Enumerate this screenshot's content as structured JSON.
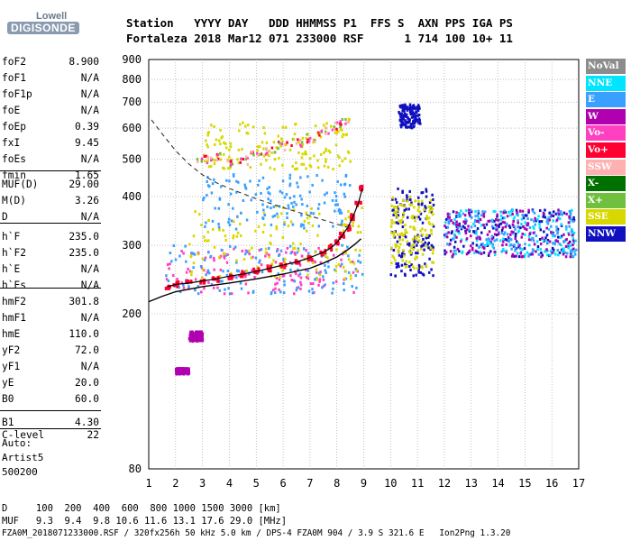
{
  "logo": {
    "line1": "Lowell",
    "line2": "DIGISONDE"
  },
  "header": {
    "line1": "Station   YYYY DAY   DDD HHMMSS P1  FFS S  AXN PPS IGA PS",
    "line2": "Fortaleza 2018 Mar12 071 233000 RSF      1 714 100 10+ 11"
  },
  "params": [
    {
      "name": "foF2",
      "value": "8.900"
    },
    {
      "name": "foF1",
      "value": "N/A"
    },
    {
      "name": "foF1p",
      "value": "N/A"
    },
    {
      "name": "foE",
      "value": "N/A"
    },
    {
      "name": "foEp",
      "value": "0.39"
    },
    {
      "name": "fxI",
      "value": "9.45"
    },
    {
      "name": "foEs",
      "value": "N/A"
    },
    {
      "name": "fmin",
      "value": "1.65"
    },
    {
      "name": "MUF(D)",
      "value": "29.00"
    },
    {
      "name": "M(D)",
      "value": "3.26"
    },
    {
      "name": "D",
      "value": "N/A"
    },
    {
      "name": "h`F",
      "value": "235.0"
    },
    {
      "name": "h`F2",
      "value": "235.0"
    },
    {
      "name": "h`E",
      "value": "N/A"
    },
    {
      "name": "h`Es",
      "value": "N/A"
    },
    {
      "name": "hmF2",
      "value": "301.8"
    },
    {
      "name": "hmF1",
      "value": "N/A"
    },
    {
      "name": "hmE",
      "value": "110.0"
    },
    {
      "name": "yF2",
      "value": "72.0"
    },
    {
      "name": "yF1",
      "value": "N/A"
    },
    {
      "name": "yE",
      "value": "20.0"
    },
    {
      "name": "B0",
      "value": "60.0"
    },
    {
      "name": "B1",
      "value": "4.30"
    },
    {
      "name": "C-level",
      "value": "22"
    }
  ],
  "auto": {
    "line1": "Auto:",
    "line2": "Artist5",
    "line3": "500200"
  },
  "legend": [
    {
      "label": "NoVal",
      "color": "#8c8c8c"
    },
    {
      "label": "NNE",
      "color": "#00e5ff"
    },
    {
      "label": "E",
      "color": "#3aa0ff"
    },
    {
      "label": "W",
      "color": "#b000b0"
    },
    {
      "label": "Vo-",
      "color": "#ff40c0"
    },
    {
      "label": "Vo+",
      "color": "#ff0030"
    },
    {
      "label": "SSW",
      "color": "#ffb0b0"
    },
    {
      "label": "X-",
      "color": "#007000"
    },
    {
      "label": "X+",
      "color": "#70c040"
    },
    {
      "label": "SSE",
      "color": "#d8d800"
    },
    {
      "label": "NNW",
      "color": "#1010c0"
    }
  ],
  "bottom": {
    "row1": "D     100  200  400  600  800 1000 1500 3000 [km]",
    "row2": "MUF   9.3  9.4  9.8 10.6 11.6 13.1 17.6 29.0 [MHz]",
    "row3": "FZA0M_2018071233000.RSF / 320fx256h 50 kHz 5.0 km / DPS-4 FZA0M 904 / 3.9 S 321.6 E   Ion2Png 1.3.20"
  },
  "chart_data": {
    "type": "scatter",
    "xlim": [
      1,
      17
    ],
    "ylim": [
      80,
      900
    ],
    "yscale": "log",
    "xticks": [
      1,
      2,
      3,
      4,
      5,
      6,
      7,
      8,
      9,
      10,
      11,
      12,
      13,
      14,
      15,
      16,
      17
    ],
    "yticks": [
      80,
      200,
      300,
      400,
      500,
      600,
      700,
      800,
      900
    ],
    "grid": true,
    "legend_position": "right",
    "trace_main": {
      "x": [
        1.7,
        2.0,
        2.5,
        3.0,
        3.5,
        4.0,
        4.5,
        5.0,
        5.5,
        6.0,
        6.5,
        7.0,
        7.5,
        7.8,
        8.0,
        8.2,
        8.4,
        8.6,
        8.8,
        8.95
      ],
      "y": [
        235,
        238,
        240,
        243,
        246,
        250,
        253,
        257,
        262,
        267,
        272,
        279,
        288,
        296,
        305,
        318,
        333,
        355,
        385,
        420
      ]
    },
    "profile_curve": {
      "x": [
        1.0,
        1.5,
        2.0,
        3.0,
        4.0,
        5.0,
        6.0,
        7.0,
        7.5,
        8.0,
        8.4,
        8.7,
        8.9
      ],
      "y": [
        215,
        222,
        228,
        235,
        240,
        246,
        253,
        262,
        270,
        280,
        292,
        303,
        312
      ]
    },
    "extraordinary_curve": {
      "x": [
        1.1,
        1.5,
        2.0,
        2.5,
        3.0,
        3.5,
        4.0,
        5.0,
        6.0,
        7.0,
        8.0,
        8.5
      ],
      "y": [
        630,
        580,
        525,
        485,
        455,
        435,
        420,
        395,
        375,
        357,
        340,
        332
      ]
    },
    "upper_trace": {
      "x": [
        3.0,
        3.5,
        4.0,
        4.5,
        5.0,
        5.5,
        6.0,
        6.5,
        7.0,
        7.5,
        8.0,
        8.3
      ],
      "y": [
        500,
        505,
        490,
        495,
        515,
        525,
        540,
        550,
        565,
        585,
        605,
        625
      ]
    },
    "clusters": [
      {
        "x": [
          1.6,
          8.8
        ],
        "y": [
          225,
          295
        ],
        "color": "#ff40c0"
      },
      {
        "x": [
          1.6,
          9.0
        ],
        "y": [
          225,
          300
        ],
        "color": "#3aa0ff"
      },
      {
        "x": [
          2.5,
          9.0
        ],
        "y": [
          245,
          380
        ],
        "color": "#d8d800"
      },
      {
        "x": [
          3.0,
          8.5
        ],
        "y": [
          330,
          460
        ],
        "color": "#3aa0ff"
      },
      {
        "x": [
          3.0,
          8.5
        ],
        "y": [
          470,
          620
        ],
        "color": "#d8d800"
      },
      {
        "x": [
          10.0,
          11.6
        ],
        "y": [
          250,
          420
        ],
        "color": "#1010c0"
      },
      {
        "x": [
          10.0,
          11.6
        ],
        "y": [
          260,
          400
        ],
        "color": "#d8d800"
      },
      {
        "x": [
          12.0,
          16.9
        ],
        "y": [
          280,
          370
        ],
        "color": "#1010c0"
      },
      {
        "x": [
          12.0,
          16.9
        ],
        "y": [
          280,
          370
        ],
        "color": "#00e5ff"
      },
      {
        "x": [
          12.0,
          16.9
        ],
        "y": [
          280,
          370
        ],
        "color": "#3aa0ff"
      },
      {
        "x": [
          12.0,
          16.9
        ],
        "y": [
          280,
          370
        ],
        "color": "#b000b0"
      },
      {
        "x": [
          10.3,
          11.1
        ],
        "y": [
          600,
          690
        ],
        "color": "#1010c0"
      },
      {
        "x": [
          2.5,
          3.0
        ],
        "y": [
          170,
          180
        ],
        "color": "#b000b0"
      },
      {
        "x": [
          2.0,
          2.5
        ],
        "y": [
          140,
          145
        ],
        "color": "#b000b0"
      }
    ]
  }
}
